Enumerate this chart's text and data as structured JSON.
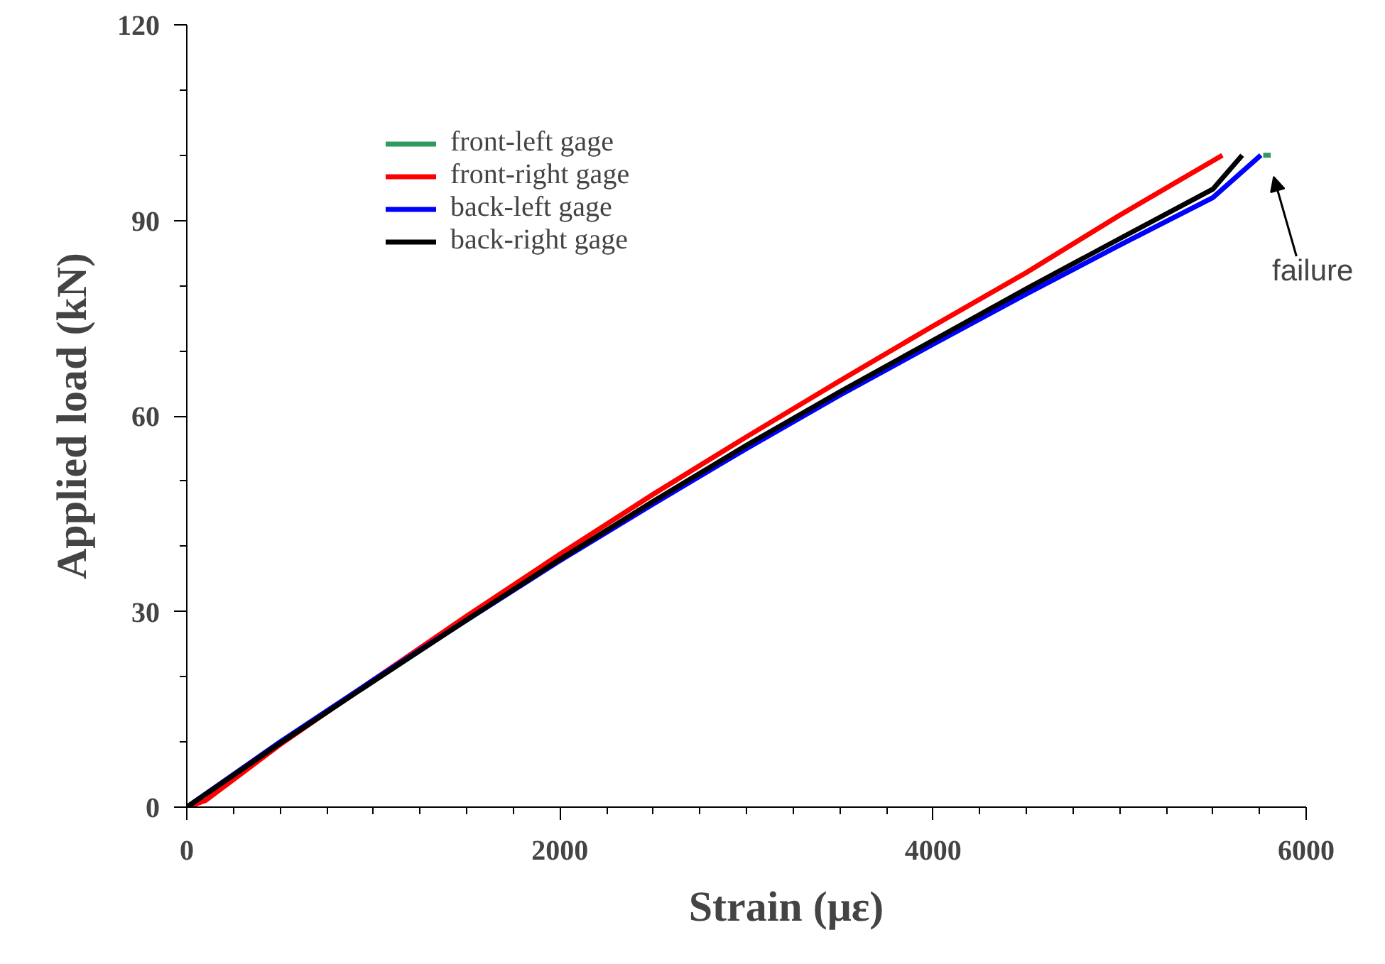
{
  "chart_data": {
    "type": "line",
    "xlabel": "Strain (με)",
    "ylabel": "Applied load (kN)",
    "xlim": [
      0,
      6000
    ],
    "xticks": [
      0,
      2000,
      4000,
      6000
    ],
    "ylim": [
      0,
      120
    ],
    "yticks": [
      0,
      30,
      60,
      90,
      120
    ],
    "grid": false,
    "legend": "top left",
    "line_style": "solid",
    "marker": "none",
    "series": [
      {
        "name": "front-left gage",
        "color": "#2e9a5e",
        "x": [
          5770,
          5810
        ],
        "values": [
          100,
          100
        ]
      },
      {
        "name": "front-right gage",
        "color": "#ff0000",
        "x": [
          0,
          100,
          500,
          1000,
          1500,
          2000,
          2500,
          3000,
          3500,
          4000,
          4500,
          5000,
          5551
        ],
        "values": [
          0,
          1,
          9.6,
          19.5,
          29.3,
          38.8,
          48.0,
          56.8,
          65.4,
          73.8,
          82.0,
          90.8,
          100
        ]
      },
      {
        "name": "back-left gage",
        "color": "#0000ff",
        "x": [
          0,
          500,
          1000,
          1500,
          2000,
          2500,
          3000,
          3500,
          4000,
          4500,
          5000,
          5500,
          5757
        ],
        "values": [
          0,
          10,
          19.5,
          28.7,
          37.8,
          46.5,
          55.0,
          63.2,
          71.0,
          78.7,
          86.2,
          93.5,
          100
        ]
      },
      {
        "name": "back-right gage",
        "color": "#000000",
        "x": [
          0,
          500,
          1000,
          1500,
          2000,
          2500,
          3000,
          3500,
          4000,
          4500,
          5000,
          5500,
          5657
        ],
        "values": [
          0,
          9.8,
          19.3,
          28.7,
          38.0,
          46.9,
          55.5,
          63.7,
          71.6,
          79.5,
          87.2,
          94.8,
          100
        ]
      }
    ],
    "annotations": [
      "failure"
    ]
  }
}
